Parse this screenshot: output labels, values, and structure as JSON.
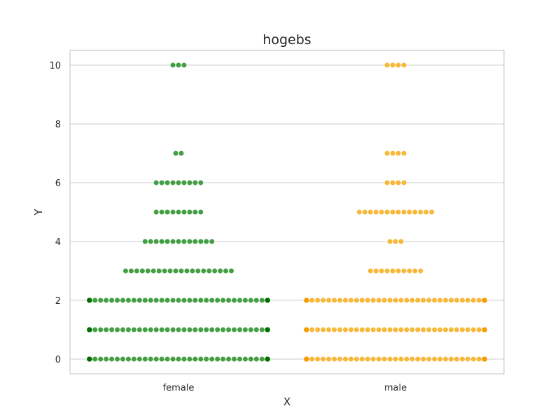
{
  "chart_data": {
    "type": "scatter",
    "subtype": "swarm",
    "title": "hogebs",
    "xlabel": "X",
    "ylabel": "Y",
    "categories": [
      "female",
      "male"
    ],
    "colors": {
      "female": "#3a9a3a",
      "male": "#f8b42f"
    },
    "edge_colors": {
      "female": "#007000",
      "male": "#f59c00"
    },
    "ylim": [
      -0.5,
      10.5
    ],
    "yticks": [
      0,
      2,
      4,
      6,
      8,
      10
    ],
    "grid": "horizontal",
    "legend": "none",
    "series": [
      {
        "category": "female",
        "counts": [
          {
            "y": 0,
            "n": 64
          },
          {
            "y": 1,
            "n": 64
          },
          {
            "y": 2,
            "n": 64
          },
          {
            "y": 3,
            "n": 20
          },
          {
            "y": 4,
            "n": 13
          },
          {
            "y": 5,
            "n": 9
          },
          {
            "y": 6,
            "n": 9
          },
          {
            "y": 7,
            "n": 2
          },
          {
            "y": 10,
            "n": 3
          }
        ]
      },
      {
        "category": "male",
        "counts": [
          {
            "y": 0,
            "n": 64
          },
          {
            "y": 1,
            "n": 64
          },
          {
            "y": 2,
            "n": 64
          },
          {
            "y": 3,
            "n": 10
          },
          {
            "y": 4,
            "n": 3
          },
          {
            "y": 5,
            "n": 14
          },
          {
            "y": 6,
            "n": 4
          },
          {
            "y": 7,
            "n": 4
          },
          {
            "y": 10,
            "n": 4
          }
        ]
      }
    ]
  }
}
